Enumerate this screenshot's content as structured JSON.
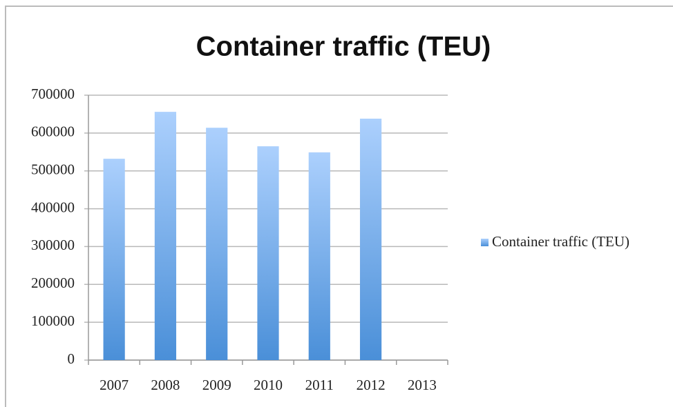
{
  "chart_data": {
    "type": "bar",
    "title": "Container traffic (TEU)",
    "categories": [
      "2007",
      "2008",
      "2009",
      "2010",
      "2011",
      "2012",
      "2013"
    ],
    "series": [
      {
        "name": "Container traffic (TEU)",
        "color": "#4a8fd8",
        "values": [
          532000,
          656000,
          614000,
          565000,
          549000,
          638000,
          null
        ]
      }
    ],
    "ylim": [
      0,
      700000
    ],
    "yticks": [
      0,
      100000,
      200000,
      300000,
      400000,
      500000,
      600000,
      700000
    ],
    "grid": true,
    "legend": "right"
  }
}
